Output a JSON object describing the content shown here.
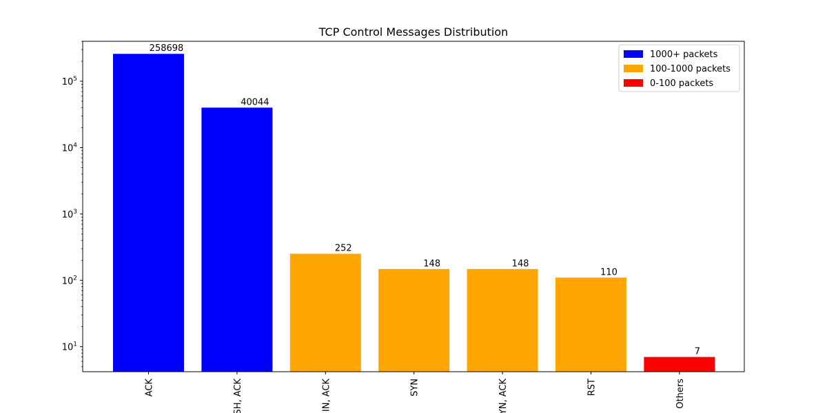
{
  "chart_data": {
    "type": "bar",
    "title": "TCP Control Messages Distribution",
    "xlabel": "",
    "ylabel": "",
    "yscale": "log",
    "ylim": [
      4.2,
      400000
    ],
    "yticks": [
      {
        "value": 10,
        "base": "10",
        "exp": "1"
      },
      {
        "value": 100,
        "base": "10",
        "exp": "2"
      },
      {
        "value": 1000,
        "base": "10",
        "exp": "3"
      },
      {
        "value": 10000,
        "base": "10",
        "exp": "4"
      },
      {
        "value": 100000,
        "base": "10",
        "exp": "5"
      }
    ],
    "categories": [
      "ACK",
      "PSH, ACK",
      "FIN, ACK",
      "SYN",
      "SYN, ACK",
      "RST",
      "Others"
    ],
    "visible_tick_labels": [
      "ACK",
      "SH, ACK",
      "IN, ACK",
      "SYN",
      "YN, ACK",
      "RST",
      "Others"
    ],
    "values": [
      258698,
      40044,
      252,
      148,
      148,
      110,
      7
    ],
    "data_labels": [
      "258698",
      "40044",
      "252",
      "148",
      "148",
      "110",
      "7"
    ],
    "bar_groups": [
      "1000+",
      "1000+",
      "100-1000",
      "100-1000",
      "100-1000",
      "100-1000",
      "0-100"
    ],
    "legend_position": "top-right",
    "grid": false,
    "legend": [
      {
        "key": "1000+",
        "label": "1000+ packets",
        "color": "#0000ff"
      },
      {
        "key": "100-1000",
        "label": "100-1000 packets",
        "color": "#ffa500"
      },
      {
        "key": "0-100",
        "label": "0-100 packets",
        "color": "#ff0000"
      }
    ]
  }
}
